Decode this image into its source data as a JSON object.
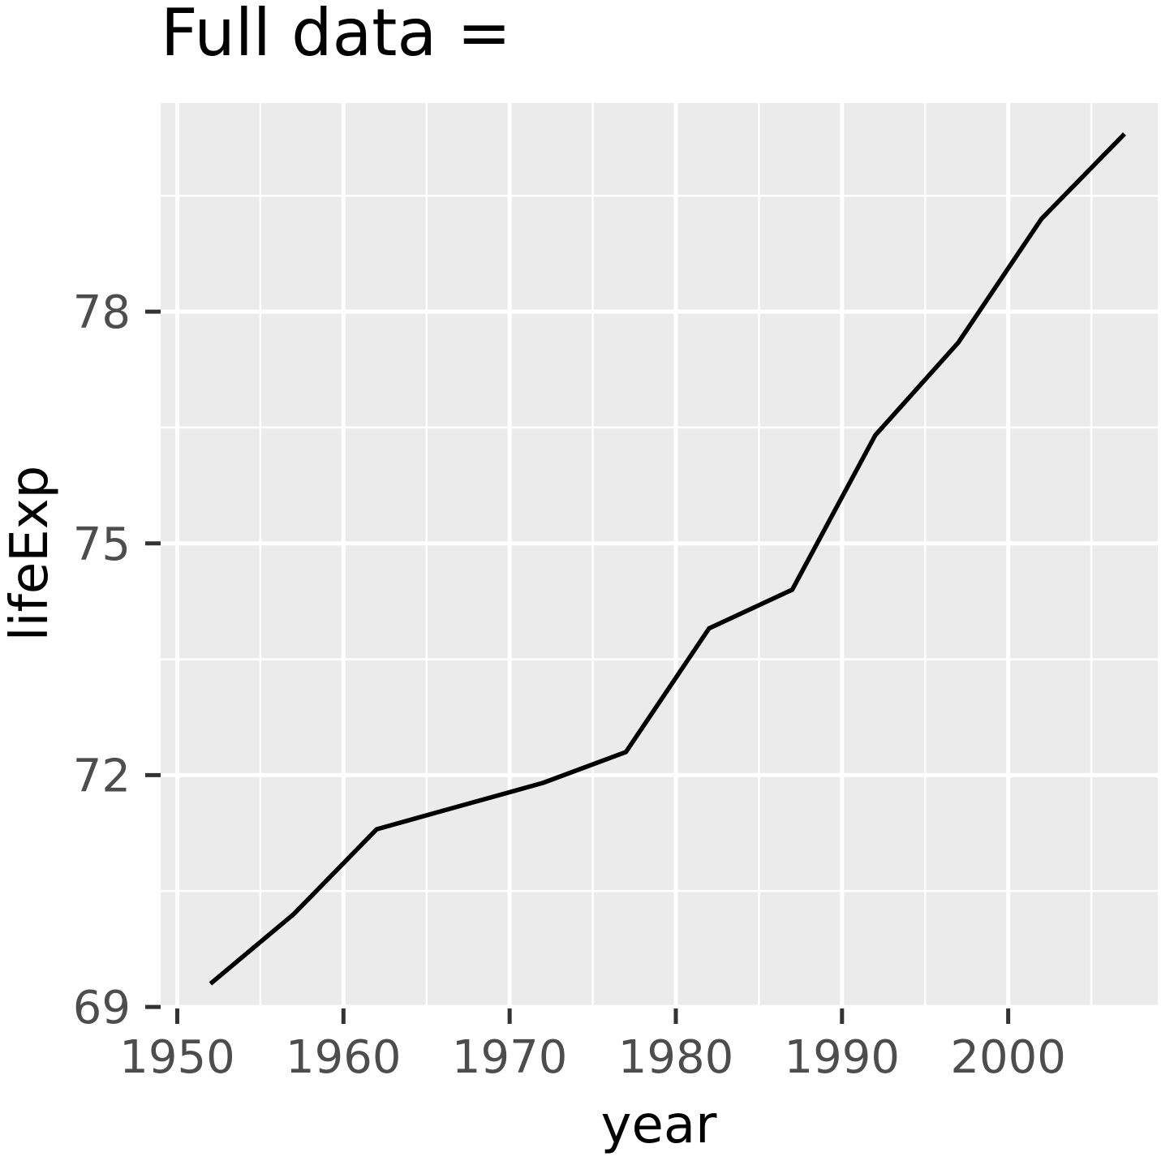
{
  "chart_data": {
    "type": "line",
    "title": "Full data =",
    "xlabel": "year",
    "ylabel": "lifeExp",
    "xlim": [
      1949,
      2009
    ],
    "ylim": [
      68.98,
      80.7
    ],
    "x_ticks": [
      1950,
      1960,
      1970,
      1980,
      1990,
      2000
    ],
    "y_ticks": [
      69,
      72,
      75,
      78
    ],
    "grid": true,
    "legend": "none",
    "colors": {
      "panel": "#ebebeb",
      "grid": "#ffffff",
      "line": "#000000",
      "tick_label": "#4d4d4d"
    },
    "series": [
      {
        "x": [
          1952,
          1957,
          1962,
          1967,
          1972,
          1977,
          1982,
          1987,
          1992,
          1997,
          2002,
          2007
        ],
        "y": [
          69.3,
          70.2,
          71.3,
          71.6,
          71.9,
          72.3,
          73.9,
          74.4,
          76.4,
          77.6,
          79.2,
          80.3
        ]
      }
    ]
  }
}
